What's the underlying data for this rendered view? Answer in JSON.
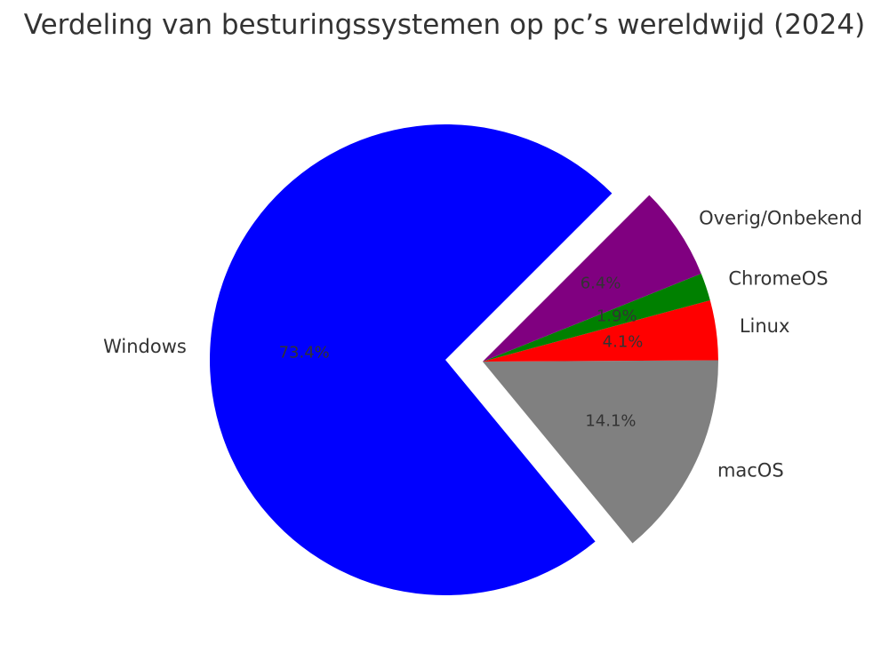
{
  "chart_data": {
    "type": "pie",
    "title": "Verdeling van besturingssystemen op pc’s wereldwijd (2024)",
    "slices": [
      {
        "label": "Windows",
        "value": 73.4,
        "pct_label": "73.4%",
        "color": "#0000ff",
        "exploded": false
      },
      {
        "label": "macOS",
        "value": 14.1,
        "pct_label": "14.1%",
        "color": "#808080",
        "exploded": true
      },
      {
        "label": "Linux",
        "value": 4.1,
        "pct_label": "4.1%",
        "color": "#ff0000",
        "exploded": true
      },
      {
        "label": "ChromeOS",
        "value": 1.9,
        "pct_label": "1.9%",
        "color": "#008000",
        "exploded": true
      },
      {
        "label": "Overig/Onbekend",
        "value": 6.4,
        "pct_label": "6.4%",
        "color": "#800080",
        "exploded": true
      }
    ],
    "legend": "none",
    "grid": false
  }
}
